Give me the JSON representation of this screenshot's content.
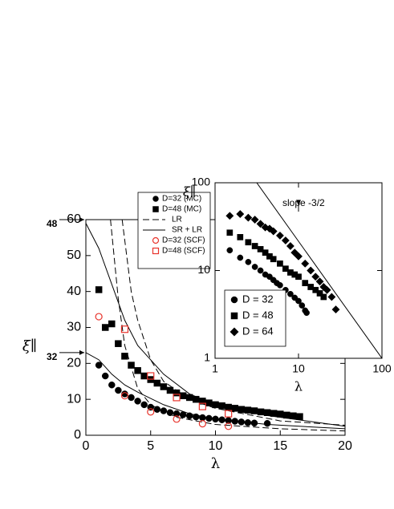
{
  "chart_data": [
    {
      "type": "scatter",
      "xlabel": "λ",
      "ylabel": "ξ∥",
      "xlim": [
        0,
        20
      ],
      "ylim": [
        0,
        60
      ],
      "xticks": [
        0,
        5,
        10,
        15,
        20
      ],
      "yticks": [
        0,
        10,
        20,
        30,
        40,
        50,
        60
      ],
      "annotations": [
        {
          "text": "48",
          "y": 60
        },
        {
          "text": "32",
          "y": 23
        }
      ],
      "series": [
        {
          "name": "D=32 (MC)",
          "marker": "circle",
          "filled": true,
          "color": "#000000",
          "x": [
            1,
            1.5,
            2,
            2.5,
            3,
            3.5,
            4,
            4.5,
            5,
            5.5,
            6,
            6.5,
            7,
            7.5,
            8,
            8.5,
            9,
            9.5,
            10,
            10.5,
            11,
            11.5,
            12,
            12.5,
            13,
            14
          ],
          "values": [
            19.5,
            16.5,
            14,
            12.5,
            11.5,
            10.5,
            9.5,
            8.5,
            7.8,
            7.2,
            6.8,
            6.3,
            6,
            5.7,
            5.4,
            5.1,
            4.9,
            4.7,
            4.5,
            4.3,
            4.1,
            3.9,
            3.7,
            3.5,
            3.4,
            3.3
          ]
        },
        {
          "name": "D=48 (MC)",
          "marker": "square",
          "filled": true,
          "color": "#000000",
          "x": [
            1,
            1.5,
            2,
            2.5,
            3,
            3.5,
            4,
            4.5,
            5,
            5.5,
            6,
            6.5,
            7,
            7.5,
            8,
            8.5,
            9,
            9.5,
            10,
            10.5,
            11,
            11.5,
            12,
            12.5,
            13,
            13.5,
            14,
            14.5,
            15,
            15.5,
            16,
            16.5
          ],
          "values": [
            40.5,
            30,
            31,
            25.5,
            22,
            19.5,
            18,
            16.5,
            15.5,
            14.5,
            13.5,
            12.5,
            11.8,
            11,
            10.5,
            10,
            9.5,
            9,
            8.5,
            8.2,
            7.8,
            7.5,
            7.2,
            7,
            6.8,
            6.5,
            6.3,
            6.1,
            5.9,
            5.6,
            5.4,
            5.2
          ]
        },
        {
          "name": "LR",
          "line": "dashed",
          "color": "#000000",
          "curves": [
            {
              "x": [
                1.9,
                2.5,
                3,
                4,
                5,
                7,
                10,
                15,
                20
              ],
              "values": [
                60,
                38,
                25,
                13,
                8.5,
                5,
                3,
                1.8,
                1.2
              ]
            },
            {
              "x": [
                2.8,
                3.5,
                4,
                5,
                6,
                8,
                10,
                15,
                20
              ],
              "values": [
                60,
                40,
                32,
                21,
                15,
                10,
                7.5,
                4,
                2.8
              ]
            }
          ]
        },
        {
          "name": "SR + LR",
          "line": "solid",
          "color": "#000000",
          "curves": [
            {
              "x": [
                0,
                1,
                2,
                3,
                4,
                6,
                8,
                10,
                14,
                20
              ],
              "values": [
                23,
                21,
                17,
                14,
                12,
                8.5,
                6,
                4.5,
                3,
                1.8
              ]
            },
            {
              "x": [
                0,
                1,
                2,
                3,
                4,
                6,
                8,
                10,
                14,
                20
              ],
              "values": [
                59,
                52,
                42,
                32,
                25,
                17,
                11.5,
                8.5,
                5.5,
                2.5
              ]
            }
          ]
        },
        {
          "name": "D=32 (SCF)",
          "marker": "circle",
          "filled": false,
          "color": "#e8332b",
          "x": [
            1,
            3,
            5,
            7,
            9,
            11
          ],
          "values": [
            33,
            11,
            6.5,
            4.5,
            3.2,
            2.5
          ]
        },
        {
          "name": "D=48 (SCF)",
          "marker": "square",
          "filled": false,
          "color": "#e8332b",
          "x": [
            3,
            5,
            7,
            9,
            11
          ],
          "values": [
            29.5,
            16.5,
            10.5,
            8,
            6
          ]
        }
      ]
    },
    {
      "type": "scatter",
      "xlabel": "λ",
      "ylabel": "ξ∥",
      "xscale": "log",
      "yscale": "log",
      "xlim": [
        1,
        100
      ],
      "ylim": [
        1,
        100
      ],
      "xticks": [
        1,
        10,
        100
      ],
      "yticks": [
        1,
        10,
        100
      ],
      "annotations": [
        {
          "text": "slope -3/2",
          "x": 10,
          "y": 55
        }
      ],
      "series": [
        {
          "name": "D = 32",
          "marker": "circle",
          "filled": true,
          "color": "#000000",
          "x": [
            1.5,
            2,
            2.5,
            3,
            3.5,
            4,
            4.5,
            5,
            5.5,
            6,
            7,
            8,
            9,
            10,
            11,
            12,
            12.5
          ],
          "values": [
            17,
            14,
            12.5,
            11,
            10,
            9,
            8.5,
            7.8,
            7.2,
            6.8,
            6,
            5.4,
            4.9,
            4.5,
            4,
            3.5,
            3.3
          ]
        },
        {
          "name": "D = 48",
          "marker": "square",
          "filled": true,
          "color": "#000000",
          "x": [
            1.5,
            2,
            2.5,
            3,
            3.5,
            4,
            4.5,
            5,
            6,
            7,
            8,
            9,
            10,
            12,
            14,
            16,
            18,
            20
          ],
          "values": [
            27,
            24,
            21,
            19,
            17.5,
            16,
            14.5,
            13.5,
            12,
            10.5,
            9.5,
            9,
            8.5,
            7.2,
            6.5,
            6,
            5.5,
            5
          ]
        },
        {
          "name": "D = 64",
          "marker": "diamond",
          "filled": true,
          "color": "#000000",
          "x": [
            1.5,
            2,
            2.5,
            3,
            3.5,
            4,
            4.5,
            5,
            6,
            7,
            8,
            9,
            10,
            12,
            14,
            16,
            18,
            20,
            22,
            25,
            28
          ],
          "values": [
            42,
            44,
            40,
            38,
            34,
            31,
            30,
            28,
            25,
            22,
            19,
            16,
            14.5,
            12,
            10,
            8.5,
            7.5,
            6.5,
            6,
            5,
            3.6
          ]
        },
        {
          "line": "solid",
          "color": "#000000",
          "curves": [
            {
              "x": [
                3.16,
                100
              ],
              "values": [
                100,
                1
              ]
            }
          ]
        }
      ]
    }
  ]
}
